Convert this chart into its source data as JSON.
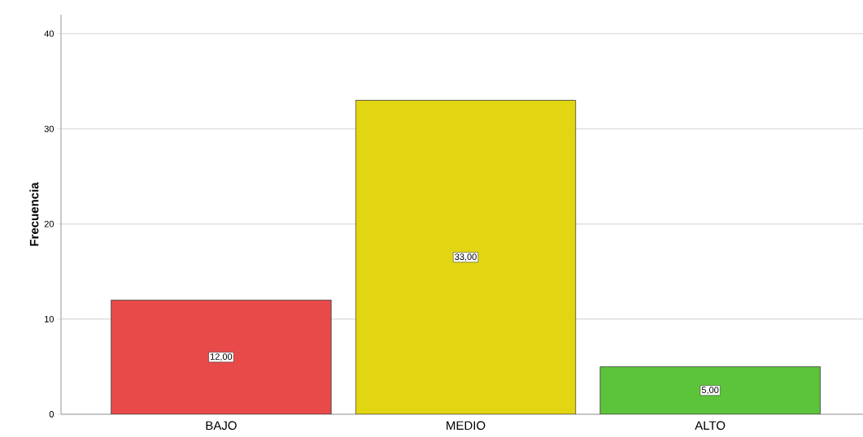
{
  "chart_data": {
    "type": "bar",
    "ylabel": "Frecuencia",
    "categories": [
      "BAJO",
      "MEDIO",
      "ALTO"
    ],
    "values": [
      12,
      33,
      5
    ],
    "colors": [
      "#e84a4a",
      "#e2d511",
      "#5cc43a"
    ],
    "value_labels": [
      "12,00",
      "33,00",
      "5,00"
    ],
    "ylim": [
      0,
      42
    ],
    "yticks": [
      0,
      10,
      20,
      30,
      40
    ],
    "grid": "y"
  }
}
